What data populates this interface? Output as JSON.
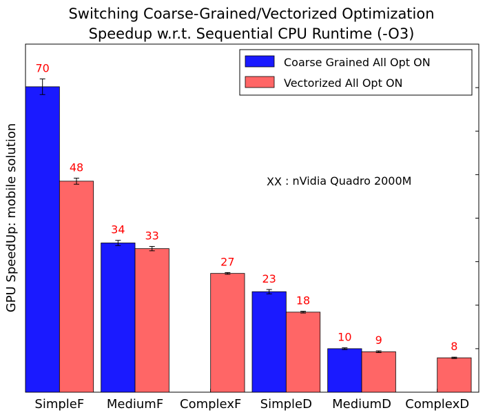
{
  "chart_data": {
    "type": "bar",
    "title": "Switching Coarse-Grained/Vectorized Optimization",
    "subtitle": "Speedup w.r.t. Sequential CPU Runtime (-O3)",
    "ylabel": "GPU SpeedUp: mobile solution",
    "xlabel": "",
    "categories": [
      "SimpleF",
      "MediumF",
      "ComplexF",
      "SimpleD",
      "MediumD",
      "ComplexD"
    ],
    "ylim": [
      0,
      80
    ],
    "grid": false,
    "legend_position": "top-right",
    "series": [
      {
        "name": "Coarse Grained All Opt ON",
        "color": "#1a1aff",
        "values": [
          70.2,
          34.3,
          null,
          23.1,
          10.0,
          null
        ],
        "errors": [
          1.8,
          0.6,
          null,
          0.5,
          0.2,
          null
        ],
        "labels": [
          "70",
          "34",
          "",
          "23",
          "10",
          ""
        ]
      },
      {
        "name": "Vectorized All Opt ON",
        "color": "#ff6666",
        "values": [
          48.5,
          33.0,
          27.3,
          18.4,
          9.3,
          7.9
        ],
        "errors": [
          0.7,
          0.5,
          0.2,
          0.2,
          0.2,
          0.15
        ],
        "labels": [
          "48",
          "33",
          "27",
          "18",
          "9",
          "8"
        ]
      }
    ],
    "label_color": "#ff0000",
    "annotation": {
      "marker": "XX",
      "text": ": nVidia Quadro 2000M"
    }
  }
}
